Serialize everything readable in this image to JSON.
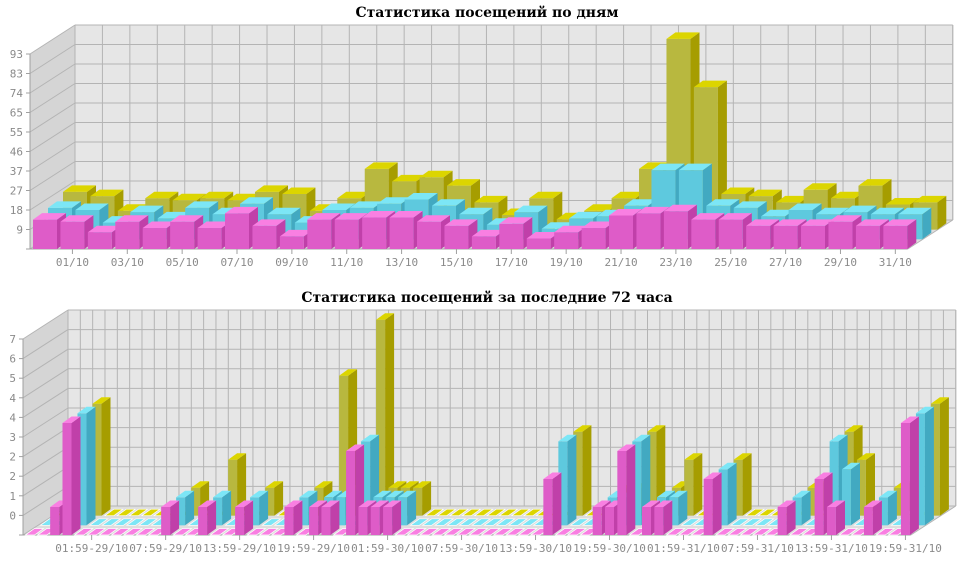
{
  "chart_data": [
    {
      "type": "bar",
      "title": "Статистика посещений по дням",
      "xlabel": "",
      "ylabel": "",
      "ylim": [
        0,
        93
      ],
      "grid": true,
      "y_tick_labels": [
        "9",
        "18",
        "27",
        "37",
        "46",
        "55",
        "65",
        "74",
        "83",
        "93"
      ],
      "x_tick_labels": [
        "01/10",
        "03/10",
        "05/10",
        "07/10",
        "09/10",
        "11/10",
        "13/10",
        "15/10",
        "17/10",
        "19/10",
        "21/10",
        "23/10",
        "25/10",
        "27/10",
        "29/10",
        "31/10"
      ],
      "x_tick_every": 2,
      "x_tick_start": 1,
      "series": [
        {
          "color": {
            "front": "#de5cc8",
            "top": "#f97fe2",
            "side": "#c040a9"
          },
          "values": [
            14,
            13,
            8,
            13,
            10,
            13,
            10,
            17,
            11,
            6,
            14,
            14,
            15,
            15,
            13,
            11,
            6,
            12,
            5,
            8,
            10,
            16,
            17,
            18,
            14,
            14,
            11,
            11,
            11,
            13,
            11,
            11
          ]
        },
        {
          "color": {
            "front": "#5ec9de",
            "top": "#7ce6f6",
            "side": "#42a9c1"
          },
          "values": [
            15,
            14,
            8,
            13,
            10,
            15,
            12,
            17,
            12,
            8,
            14,
            15,
            17,
            19,
            16,
            12,
            7,
            13,
            5,
            10,
            11,
            16,
            33,
            33,
            16,
            15,
            11,
            14,
            12,
            13,
            12,
            12
          ]
        },
        {
          "color": {
            "front": "#b8b83f",
            "top": "#dcd500",
            "side": "#a69d00"
          },
          "values": [
            18,
            16,
            9,
            15,
            14,
            15,
            14,
            18,
            17,
            9,
            15,
            29,
            23,
            25,
            21,
            13,
            7,
            15,
            5,
            9,
            15,
            29,
            91,
            68,
            17,
            16,
            13,
            19,
            15,
            21,
            12,
            13
          ]
        }
      ]
    },
    {
      "type": "bar",
      "title": "Статистика посещений за последние 72 часа",
      "xlabel": "",
      "ylabel": "",
      "ylim": [
        0,
        7
      ],
      "grid": true,
      "y_tick_labels": [
        "0",
        "1",
        "2",
        "2",
        "3",
        "4",
        "4",
        "5",
        "6",
        "7"
      ],
      "x_tick_labels": [
        "01:59-29/10",
        "07:59-29/10",
        "13:59-29/10",
        "19:59-29/10",
        "01:59-30/10",
        "07:59-30/10",
        "13:59-30/10",
        "19:59-30/10",
        "01:59-31/10",
        "07:59-31/10",
        "13:59-31/10",
        "19:59-31/10"
      ],
      "x_tick_every": 6,
      "x_tick_start": 5,
      "series": [
        {
          "color": {
            "front": "#de5cc8",
            "top": "#f97fe2",
            "side": "#c040a9"
          },
          "values": [
            0,
            0,
            1,
            4,
            0,
            0,
            0,
            0,
            0,
            0,
            0,
            1,
            0,
            0,
            1,
            0,
            0,
            1,
            0,
            0,
            0,
            1,
            0,
            1,
            1,
            0,
            3,
            1,
            1,
            1,
            0,
            0,
            0,
            0,
            0,
            0,
            0,
            0,
            0,
            0,
            0,
            0,
            2,
            0,
            0,
            0,
            1,
            1,
            3,
            0,
            1,
            1,
            0,
            0,
            0,
            2,
            0,
            0,
            0,
            0,
            0,
            1,
            0,
            0,
            2,
            1,
            0,
            0,
            1,
            0,
            0,
            4
          ]
        },
        {
          "color": {
            "front": "#5ec9de",
            "top": "#7ce6f6",
            "side": "#42a9c1"
          },
          "values": [
            0,
            0,
            1,
            4,
            0,
            0,
            0,
            0,
            0,
            0,
            0,
            1,
            0,
            0,
            1,
            0,
            0,
            1,
            0,
            0,
            0,
            1,
            0,
            1,
            1,
            0,
            3,
            1,
            1,
            1,
            0,
            0,
            0,
            0,
            0,
            0,
            0,
            0,
            0,
            0,
            0,
            0,
            3,
            0,
            0,
            0,
            1,
            1,
            3,
            0,
            1,
            1,
            0,
            0,
            0,
            2,
            0,
            0,
            0,
            0,
            0,
            1,
            0,
            0,
            3,
            2,
            0,
            0,
            1,
            0,
            0,
            4
          ]
        },
        {
          "color": {
            "front": "#b8b83f",
            "top": "#dcd500",
            "side": "#a69d00"
          },
          "values": [
            0,
            0,
            1,
            4,
            0,
            0,
            0,
            0,
            0,
            0,
            0,
            1,
            0,
            0,
            2,
            0,
            0,
            1,
            0,
            0,
            0,
            1,
            0,
            5,
            1,
            0,
            7,
            1,
            1,
            1,
            0,
            0,
            0,
            0,
            0,
            0,
            0,
            0,
            0,
            0,
            0,
            0,
            3,
            0,
            0,
            0,
            1,
            1,
            3,
            0,
            1,
            2,
            0,
            0,
            0,
            2,
            0,
            0,
            0,
            0,
            0,
            1,
            0,
            0,
            3,
            2,
            0,
            0,
            1,
            0,
            0,
            4
          ]
        }
      ]
    }
  ],
  "colors": {
    "back_wall": "#e6e6e6",
    "side_wall": "#d5d5d5",
    "floor": "#dedede",
    "grid": "#b4b4b4",
    "axis": "#a0a0a0"
  }
}
